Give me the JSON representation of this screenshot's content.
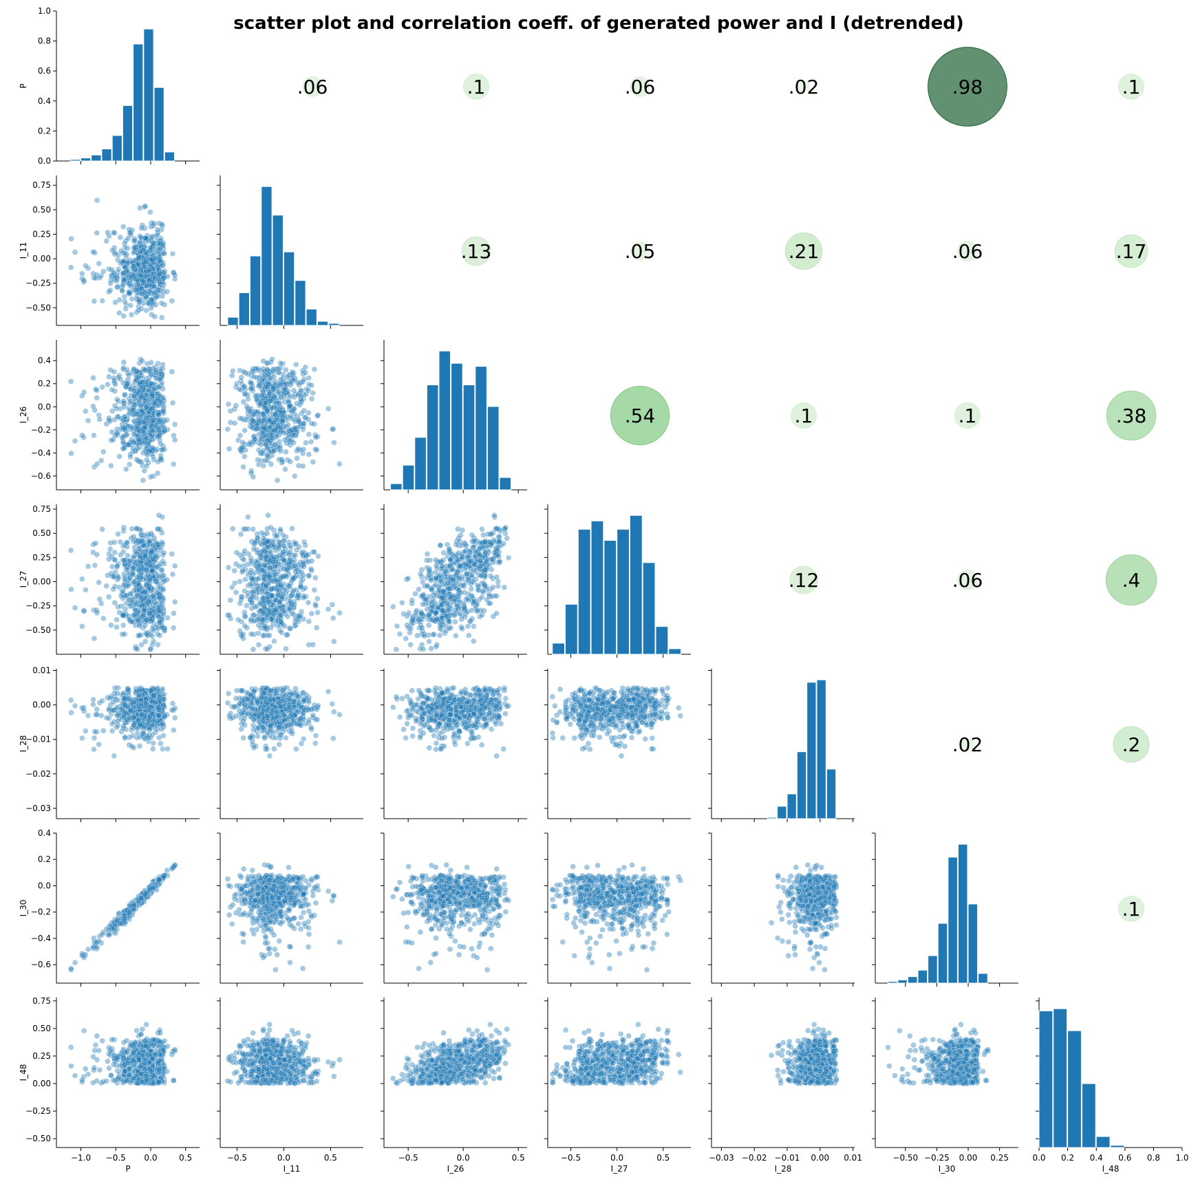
{
  "chart_data": {
    "type": "scatter",
    "title": "scatter plot and correlation coeff. of generated power and I (detrended)",
    "variables": [
      "P",
      "I_11",
      "I_26",
      "I_27",
      "I_28",
      "I_30",
      "I_48"
    ],
    "diag_ticks": [
      {
        "name": "P",
        "values": [
          0.0,
          0.2,
          0.4,
          0.6,
          0.8,
          1.0
        ],
        "labels": [
          "0.0",
          "0.2",
          "0.4",
          "0.6",
          "0.8",
          "1.0"
        ],
        "range": [
          0,
          1.0
        ]
      },
      {
        "name": "I_48",
        "values": [
          0.0,
          0.2,
          0.4,
          0.6,
          0.8,
          1.0
        ],
        "labels": [
          "0.0",
          "0.2",
          "0.4",
          "0.6",
          "0.8",
          "1.0"
        ],
        "range": [
          0,
          1.0
        ]
      }
    ],
    "axes": {
      "P": {
        "range": [
          -1.35,
          0.7
        ],
        "ticks": [
          -1.0,
          -0.5,
          0.0,
          0.5
        ],
        "labels": [
          "−1.0",
          "−0.5",
          "0.0",
          "0.5"
        ]
      },
      "I_11": {
        "range": [
          -0.68,
          0.85
        ],
        "ticks": [
          -0.5,
          -0.25,
          0.0,
          0.25,
          0.5,
          0.75
        ],
        "labels": [
          "−0.50",
          "−0.25",
          "0.00",
          "0.25",
          "0.50",
          "0.75"
        ],
        "xticks": [
          -0.5,
          0.0,
          0.5
        ],
        "xlabels": [
          "−0.5",
          "0.0",
          "0.5"
        ]
      },
      "I_26": {
        "range": [
          -0.72,
          0.58
        ],
        "ticks": [
          -0.6,
          -0.4,
          -0.2,
          0.0,
          0.2,
          0.4
        ],
        "labels": [
          "−0.6",
          "−0.4",
          "−0.2",
          "0.0",
          "0.2",
          "0.4"
        ],
        "xticks": [
          -0.5,
          0.0,
          0.5
        ],
        "xlabels": [
          "−0.5",
          "0.0",
          "0.5"
        ]
      },
      "I_27": {
        "range": [
          -0.75,
          0.8
        ],
        "ticks": [
          -0.5,
          -0.25,
          0.0,
          0.25,
          0.5,
          0.75
        ],
        "labels": [
          "−0.50",
          "−0.25",
          "0.00",
          "0.25",
          "0.50",
          "0.75"
        ],
        "xticks": [
          -0.5,
          0.0,
          0.5
        ],
        "xlabels": [
          "−0.5",
          "0.0",
          "0.5"
        ]
      },
      "I_28": {
        "range": [
          -0.033,
          0.0105
        ],
        "ticks": [
          -0.03,
          -0.02,
          -0.01,
          0.0,
          0.01
        ],
        "labels": [
          "−0.03",
          "−0.02",
          "−0.01",
          "0.00",
          "0.01"
        ],
        "xticks": [
          -0.03,
          -0.02,
          -0.01,
          0.0,
          0.01
        ],
        "xlabels": [
          "−0.03",
          "−0.02",
          "−0.01",
          "0.00",
          "0.01"
        ]
      },
      "I_30": {
        "range": [
          -0.74,
          0.4
        ],
        "ticks": [
          -0.6,
          -0.4,
          -0.2,
          0.0,
          0.2,
          0.4
        ],
        "labels": [
          "−0.6",
          "−0.4",
          "−0.2",
          "0.0",
          "0.2",
          "0.4"
        ],
        "xticks": [
          -0.5,
          -0.25,
          0.0,
          0.25
        ],
        "xlabels": [
          "−0.50",
          "−0.25",
          "0.00",
          "0.25"
        ]
      },
      "I_48": {
        "range": [
          -0.58,
          0.78
        ],
        "ticks": [
          -0.5,
          -0.25,
          0.0,
          0.25,
          0.5,
          0.75
        ],
        "labels": [
          "−0.50",
          "−0.25",
          "0.00",
          "0.25",
          "0.50",
          "0.75"
        ],
        "xticks": [
          0.0,
          0.2,
          0.4,
          0.6,
          0.8,
          1.0
        ],
        "xlabels": [
          "0.0",
          "0.2",
          "0.4",
          "0.6",
          "0.8",
          "1.0"
        ],
        "xrange": [
          0,
          1.0
        ]
      }
    },
    "histograms": {
      "P": {
        "bin_edges": [
          -1.3,
          -1.15,
          -1.0,
          -0.85,
          -0.7,
          -0.55,
          -0.4,
          -0.25,
          -0.1,
          0.05,
          0.2,
          0.35,
          0.5,
          0.65
        ],
        "density": [
          0.0,
          0.01,
          0.02,
          0.04,
          0.08,
          0.17,
          0.37,
          0.78,
          0.88,
          0.49,
          0.06,
          0.0,
          0.0
        ]
      },
      "I_11": {
        "bin_edges": [
          -0.6,
          -0.48,
          -0.36,
          -0.24,
          -0.12,
          0.0,
          0.12,
          0.24,
          0.36,
          0.48,
          0.6,
          0.72,
          0.84
        ],
        "density": [
          0.02,
          0.08,
          0.17,
          0.34,
          0.27,
          0.18,
          0.11,
          0.04,
          0.01,
          0.005,
          0.0,
          0.0
        ]
      },
      "I_26": {
        "bin_edges": [
          -0.66,
          -0.55,
          -0.44,
          -0.33,
          -0.22,
          -0.11,
          0.0,
          0.11,
          0.22,
          0.33,
          0.44,
          0.55
        ],
        "density": [
          0.02,
          0.08,
          0.17,
          0.34,
          0.45,
          0.41,
          0.34,
          0.4,
          0.27,
          0.04,
          0.0
        ]
      },
      "I_27": {
        "bin_edges": [
          -0.7,
          -0.56,
          -0.42,
          -0.28,
          -0.14,
          0.0,
          0.14,
          0.28,
          0.42,
          0.56,
          0.7,
          0.84
        ],
        "density": [
          0.04,
          0.18,
          0.45,
          0.48,
          0.41,
          0.45,
          0.5,
          0.33,
          0.1,
          0.02,
          0.0
        ]
      },
      "I_28": {
        "bin_edges": [
          -0.031,
          -0.028,
          -0.025,
          -0.022,
          -0.019,
          -0.016,
          -0.013,
          -0.01,
          -0.007,
          -0.004,
          -0.001,
          0.002,
          0.005,
          0.008
        ],
        "density": [
          0.0,
          0.0,
          0.0,
          0.0,
          0.0,
          0.005,
          0.05,
          0.1,
          0.27,
          0.55,
          0.56,
          0.2,
          0.0
        ]
      },
      "I_30": {
        "bin_edges": [
          -0.72,
          -0.64,
          -0.56,
          -0.48,
          -0.4,
          -0.32,
          -0.24,
          -0.16,
          -0.08,
          0.0,
          0.08,
          0.16,
          0.24,
          0.32,
          0.4
        ],
        "density": [
          0.0,
          0.01,
          0.02,
          0.04,
          0.08,
          0.17,
          0.37,
          0.78,
          0.86,
          0.49,
          0.06,
          0.0,
          0.0,
          0.0
        ]
      },
      "I_48": {
        "bin_edges": [
          0.0,
          0.1,
          0.2,
          0.3,
          0.4,
          0.5,
          0.6,
          0.7
        ],
        "density": [
          0.62,
          0.63,
          0.53,
          0.29,
          0.05,
          0.01,
          0.0
        ]
      }
    },
    "correlations": [
      {
        "row": "P",
        "col": "I_11",
        "label": ".06",
        "value": 0.06
      },
      {
        "row": "P",
        "col": "I_26",
        "label": ".1",
        "value": 0.1
      },
      {
        "row": "P",
        "col": "I_27",
        "label": ".06",
        "value": 0.06
      },
      {
        "row": "P",
        "col": "I_28",
        "label": ".02",
        "value": 0.02
      },
      {
        "row": "P",
        "col": "I_30",
        "label": ".98",
        "value": 0.98
      },
      {
        "row": "P",
        "col": "I_48",
        "label": ".1",
        "value": 0.1
      },
      {
        "row": "I_11",
        "col": "I_26",
        "label": ".13",
        "value": 0.13
      },
      {
        "row": "I_11",
        "col": "I_27",
        "label": ".05",
        "value": 0.05
      },
      {
        "row": "I_11",
        "col": "I_28",
        "label": ".21",
        "value": 0.21
      },
      {
        "row": "I_11",
        "col": "I_30",
        "label": ".06",
        "value": 0.06
      },
      {
        "row": "I_11",
        "col": "I_48",
        "label": ".17",
        "value": 0.17
      },
      {
        "row": "I_26",
        "col": "I_27",
        "label": ".54",
        "value": 0.54
      },
      {
        "row": "I_26",
        "col": "I_28",
        "label": ".1",
        "value": 0.1
      },
      {
        "row": "I_26",
        "col": "I_30",
        "label": ".1",
        "value": 0.1
      },
      {
        "row": "I_26",
        "col": "I_48",
        "label": ".38",
        "value": 0.38
      },
      {
        "row": "I_27",
        "col": "I_28",
        "label": ".12",
        "value": 0.12
      },
      {
        "row": "I_27",
        "col": "I_30",
        "label": ".06",
        "value": 0.06
      },
      {
        "row": "I_27",
        "col": "I_48",
        "label": ".4",
        "value": 0.4
      },
      {
        "row": "I_28",
        "col": "I_30",
        "label": ".02",
        "value": 0.02
      },
      {
        "row": "I_28",
        "col": "I_48",
        "label": ".2",
        "value": 0.2
      },
      {
        "row": "I_30",
        "col": "I_48",
        "label": ".1",
        "value": 0.1
      }
    ],
    "colors": {
      "bar": "#1f77b4",
      "point": "#1f77b4",
      "corr_low": "#e5f5e0",
      "corr_high": "#1b5e33"
    }
  }
}
